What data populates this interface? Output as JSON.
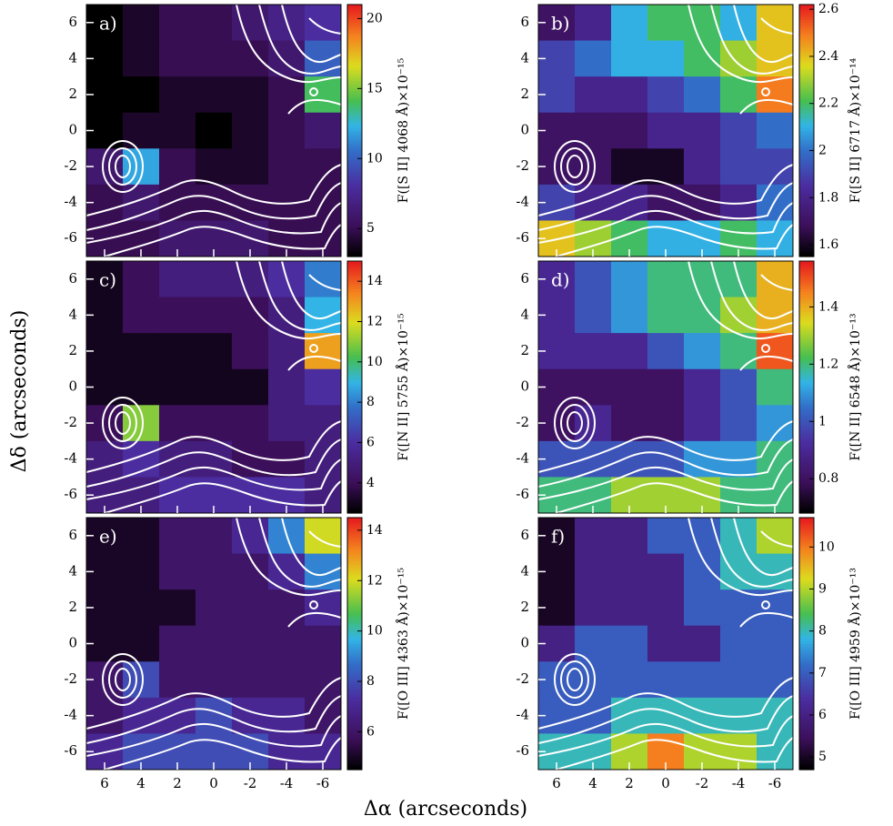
{
  "figure": {
    "xlabel": "Δα (arcseconds)",
    "ylabel": "Δδ (arcseconds)"
  },
  "chart_data": [
    {
      "type": "heatmap",
      "label": "a)",
      "colorbar_label": "F([S II] 4068 Å)×10⁻¹⁵",
      "colormap": "rainbow",
      "x": [
        6,
        4,
        2,
        0,
        -2,
        -4,
        -6
      ],
      "y": [
        6,
        4,
        2,
        0,
        -2,
        -4,
        -6
      ],
      "xlim": [
        7,
        -7
      ],
      "ylim": [
        -7,
        7
      ],
      "xticks": [
        6,
        4,
        2,
        0,
        -2,
        -4,
        -6
      ],
      "yticks": [
        -6,
        -4,
        -2,
        0,
        2,
        4,
        6
      ],
      "clim": [
        3,
        21
      ],
      "cticks": [
        5,
        10,
        15,
        20
      ],
      "z": [
        [
          3,
          4,
          5,
          5,
          6,
          7,
          8
        ],
        [
          3,
          4,
          5,
          5,
          5,
          6,
          10
        ],
        [
          3,
          3,
          4,
          4,
          4,
          5,
          14
        ],
        [
          3,
          4,
          4,
          3,
          4,
          5,
          6
        ],
        [
          6,
          12,
          5,
          4,
          4,
          5,
          5
        ],
        [
          5,
          6,
          5,
          5,
          5,
          5,
          5
        ],
        [
          5,
          5,
          6,
          6,
          6,
          5,
          5
        ]
      ]
    },
    {
      "type": "heatmap",
      "label": "b)",
      "colorbar_label": "F([S II] 6717 Å)×10⁻¹⁴",
      "colormap": "rainbow",
      "x": [
        6,
        4,
        2,
        0,
        -2,
        -4,
        -6
      ],
      "y": [
        6,
        4,
        2,
        0,
        -2,
        -4,
        -6
      ],
      "xlim": [
        7,
        -7
      ],
      "ylim": [
        -7,
        7
      ],
      "xticks": [
        6,
        4,
        2,
        0,
        -2,
        -4,
        -6
      ],
      "yticks": [
        -6,
        -4,
        -2,
        0,
        2,
        4,
        6
      ],
      "clim": [
        1.55,
        2.62
      ],
      "cticks": [
        1.6,
        1.8,
        2.0,
        2.2,
        2.4,
        2.6
      ],
      "z": [
        [
          1.7,
          1.8,
          2.1,
          2.2,
          2.2,
          2.1,
          2.4
        ],
        [
          1.9,
          2.0,
          2.1,
          2.1,
          2.2,
          2.3,
          2.4
        ],
        [
          1.9,
          1.8,
          1.8,
          1.9,
          2.0,
          2.2,
          2.5
        ],
        [
          1.7,
          1.7,
          1.7,
          1.8,
          1.8,
          1.9,
          2.0
        ],
        [
          1.7,
          1.7,
          1.6,
          1.6,
          1.8,
          1.9,
          1.9
        ],
        [
          1.9,
          1.8,
          1.8,
          1.7,
          1.7,
          1.8,
          2.0
        ],
        [
          2.4,
          2.3,
          2.2,
          2.1,
          2.1,
          2.2,
          2.1
        ]
      ]
    },
    {
      "type": "heatmap",
      "label": "c)",
      "colorbar_label": "F([N II] 5755 Å)×10⁻¹⁵",
      "colormap": "rainbow",
      "x": [
        6,
        4,
        2,
        0,
        -2,
        -4,
        -6
      ],
      "y": [
        6,
        4,
        2,
        0,
        -2,
        -4,
        -6
      ],
      "xlim": [
        7,
        -7
      ],
      "ylim": [
        -7,
        7
      ],
      "xticks": [
        6,
        4,
        2,
        0,
        -2,
        -4,
        -6
      ],
      "yticks": [
        -6,
        -4,
        -2,
        0,
        2,
        4,
        6
      ],
      "clim": [
        2.5,
        15
      ],
      "cticks": [
        4,
        6,
        8,
        10,
        12,
        14
      ],
      "z": [
        [
          3,
          4,
          5,
          5,
          5,
          6,
          8
        ],
        [
          3,
          4,
          4,
          4,
          4,
          5,
          9
        ],
        [
          3,
          3,
          3,
          3,
          4,
          5,
          13
        ],
        [
          3,
          3,
          3,
          3,
          3,
          5,
          6
        ],
        [
          4,
          11,
          4,
          4,
          4,
          5,
          5
        ],
        [
          5,
          6,
          5,
          5,
          4,
          4,
          5
        ],
        [
          5,
          5,
          6,
          6,
          6,
          6,
          5
        ]
      ]
    },
    {
      "type": "heatmap",
      "label": "d)",
      "colorbar_label": "F([N II] 6548 Å)×10⁻¹³",
      "colormap": "rainbow",
      "x": [
        6,
        4,
        2,
        0,
        -2,
        -4,
        -6
      ],
      "y": [
        6,
        4,
        2,
        0,
        -2,
        -4,
        -6
      ],
      "xlim": [
        7,
        -7
      ],
      "ylim": [
        -7,
        7
      ],
      "xticks": [
        6,
        4,
        2,
        0,
        -2,
        -4,
        -6
      ],
      "yticks": [
        -6,
        -4,
        -2,
        0,
        2,
        4,
        6
      ],
      "clim": [
        0.68,
        1.56
      ],
      "cticks": [
        0.8,
        1.0,
        1.2,
        1.4
      ],
      "z": [
        [
          0.9,
          1.0,
          1.1,
          1.2,
          1.2,
          1.2,
          1.4
        ],
        [
          0.9,
          1.0,
          1.1,
          1.2,
          1.2,
          1.3,
          1.4
        ],
        [
          0.9,
          0.9,
          0.9,
          1.0,
          1.1,
          1.2,
          1.5
        ],
        [
          0.8,
          0.8,
          0.8,
          0.8,
          0.9,
          1.0,
          1.2
        ],
        [
          0.8,
          0.9,
          0.8,
          0.8,
          0.9,
          1.0,
          1.1
        ],
        [
          1.0,
          1.0,
          1.0,
          1.0,
          1.1,
          1.1,
          1.2
        ],
        [
          1.2,
          1.2,
          1.3,
          1.3,
          1.3,
          1.2,
          1.2
        ]
      ]
    },
    {
      "type": "heatmap",
      "label": "e)",
      "colorbar_label": "F([O III] 4363 Å)×10⁻¹⁵",
      "colormap": "rainbow",
      "x": [
        6,
        4,
        2,
        0,
        -2,
        -4,
        -6
      ],
      "y": [
        6,
        4,
        2,
        0,
        -2,
        -4,
        -6
      ],
      "xlim": [
        7,
        -7
      ],
      "ylim": [
        -7,
        7
      ],
      "xticks": [
        6,
        4,
        2,
        0,
        -2,
        -4,
        -6
      ],
      "yticks": [
        -6,
        -4,
        -2,
        0,
        2,
        4,
        6
      ],
      "clim": [
        4.5,
        14.5
      ],
      "cticks": [
        6,
        8,
        10,
        12,
        14
      ],
      "z": [
        [
          5,
          5,
          6,
          6,
          7,
          9,
          12
        ],
        [
          5,
          5,
          6,
          6,
          6,
          7,
          9
        ],
        [
          5,
          5,
          5,
          6,
          6,
          6,
          7
        ],
        [
          5,
          5,
          6,
          6,
          6,
          6,
          6
        ],
        [
          6,
          8,
          6,
          6,
          6,
          6,
          6
        ],
        [
          6,
          7,
          7,
          8,
          7,
          7,
          6
        ],
        [
          7,
          8,
          8,
          8,
          8,
          7,
          7
        ]
      ]
    },
    {
      "type": "heatmap",
      "label": "f)",
      "colorbar_label": "F([O III] 4959 Å)×10⁻¹³",
      "colormap": "rainbow",
      "x": [
        6,
        4,
        2,
        0,
        -2,
        -4,
        -6
      ],
      "y": [
        6,
        4,
        2,
        0,
        -2,
        -4,
        -6
      ],
      "xlim": [
        7,
        -7
      ],
      "ylim": [
        -7,
        7
      ],
      "xticks": [
        6,
        4,
        2,
        0,
        -2,
        -4,
        -6
      ],
      "yticks": [
        -6,
        -4,
        -2,
        0,
        2,
        4,
        6
      ],
      "clim": [
        4.7,
        10.7
      ],
      "cticks": [
        5,
        6,
        7,
        8,
        9,
        10
      ],
      "z": [
        [
          5,
          6,
          6,
          7,
          7,
          8,
          9
        ],
        [
          5,
          6,
          6,
          6,
          7,
          8,
          8
        ],
        [
          5,
          6,
          6,
          6,
          7,
          7,
          7
        ],
        [
          6,
          7,
          7,
          6,
          6,
          7,
          7
        ],
        [
          7,
          7,
          7,
          7,
          7,
          7,
          7
        ],
        [
          7,
          7,
          8,
          8,
          8,
          8,
          8
        ],
        [
          8,
          8,
          9,
          10,
          9,
          9,
          8
        ]
      ]
    }
  ]
}
